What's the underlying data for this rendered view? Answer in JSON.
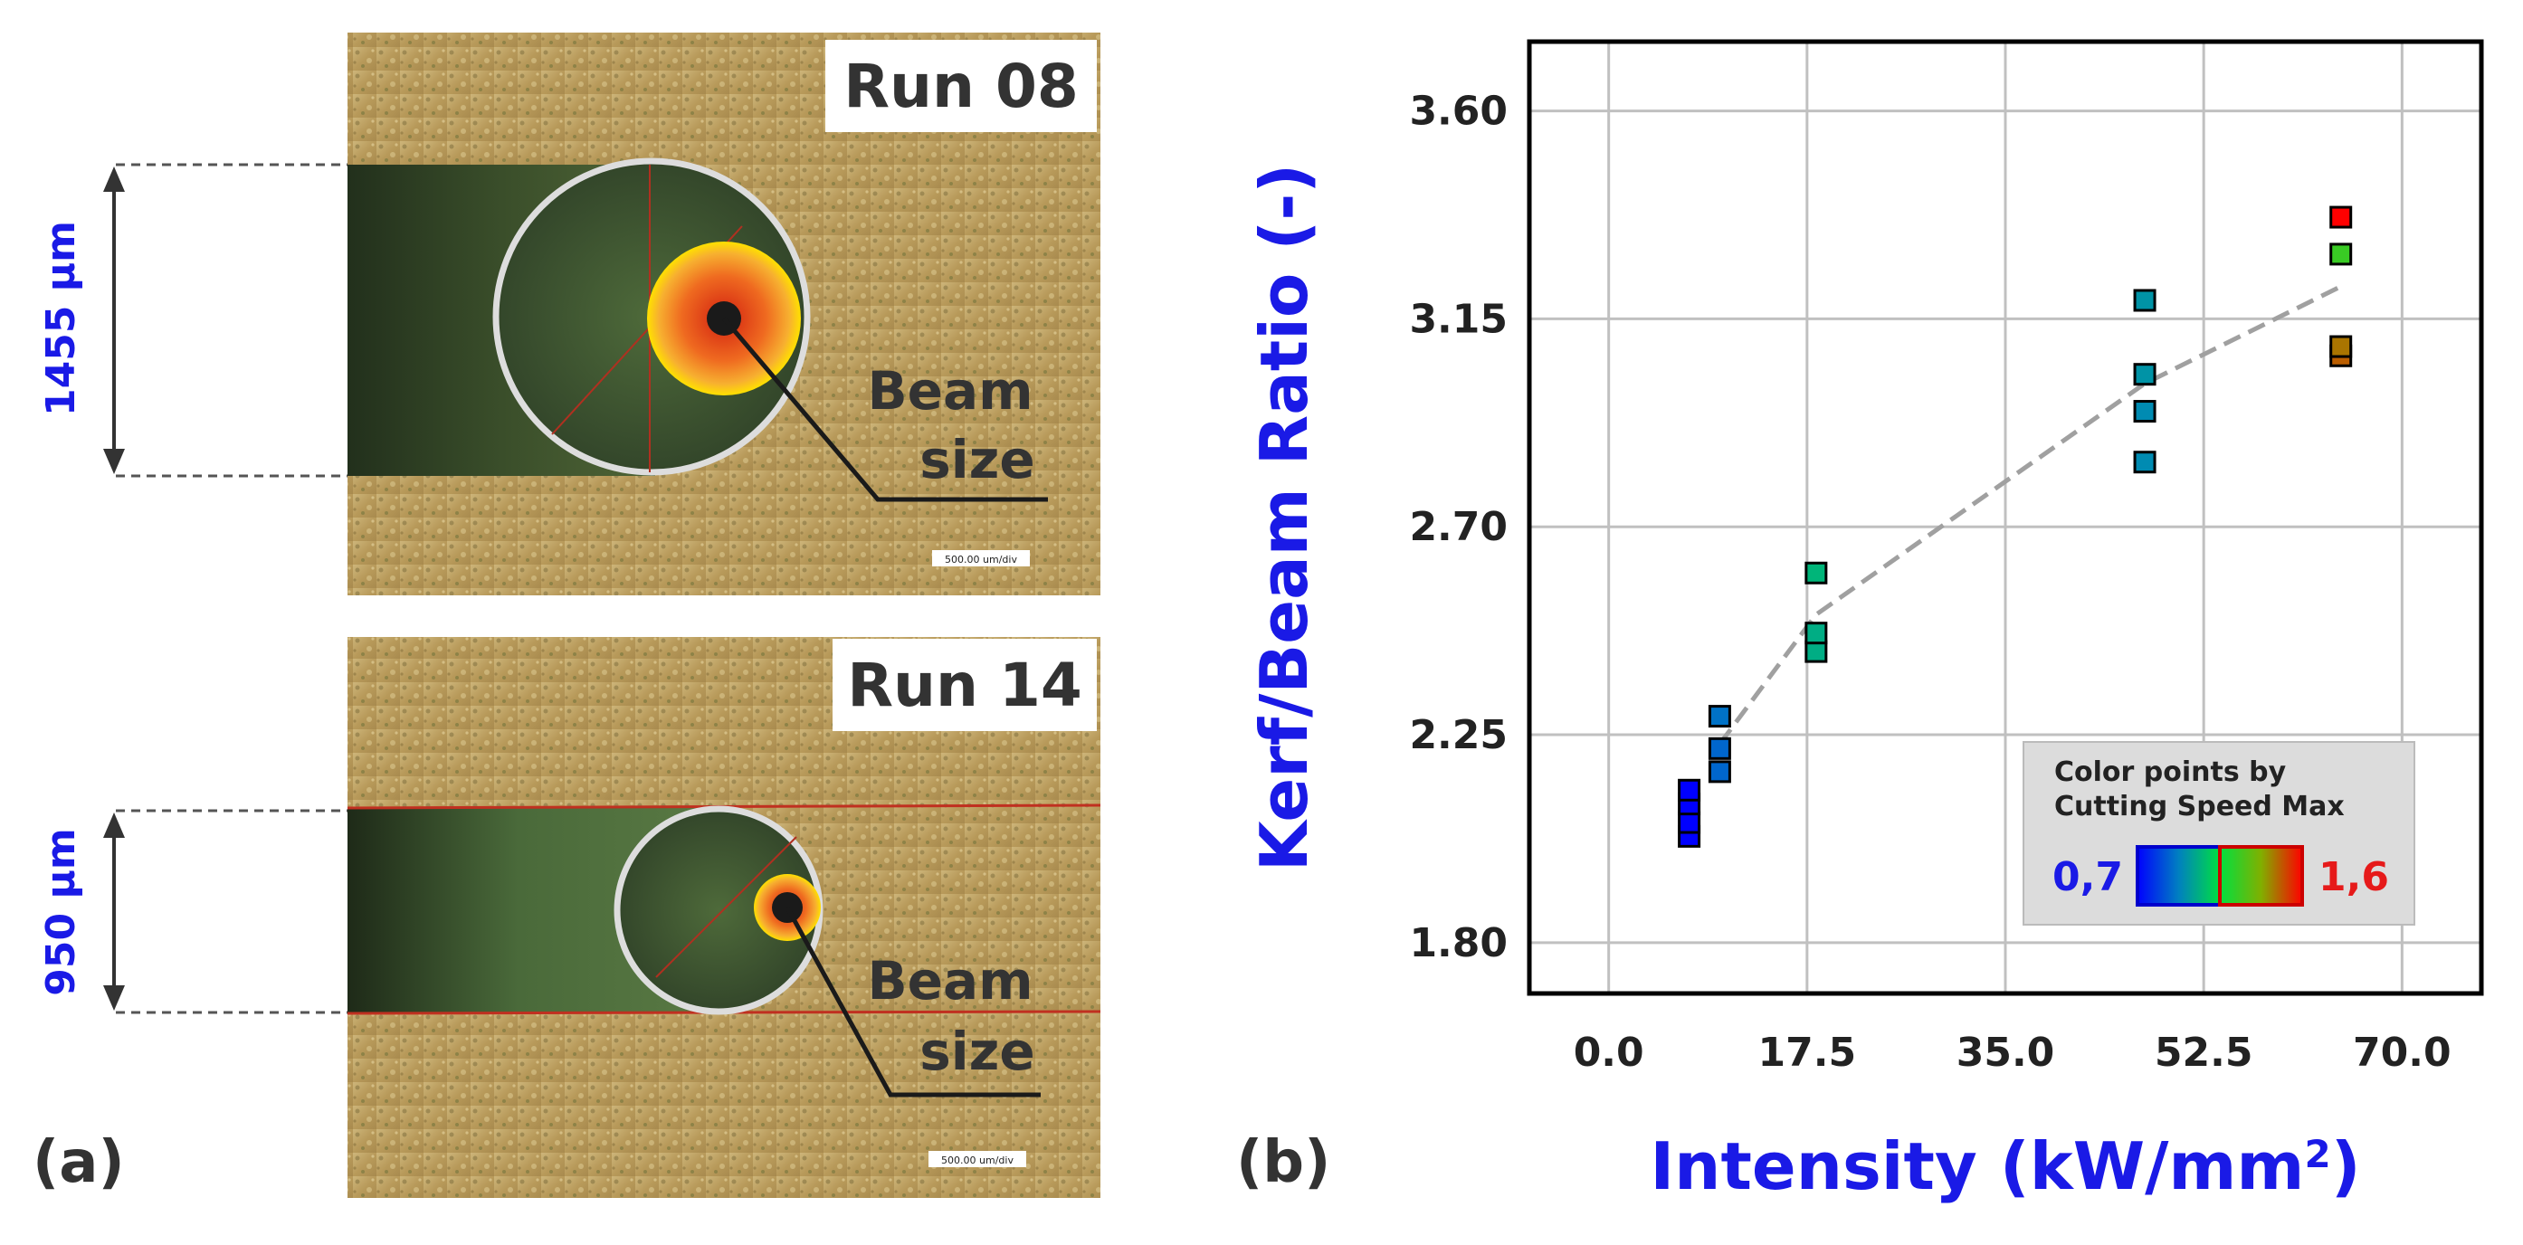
{
  "panel_a": {
    "label": "(a)",
    "micrographs": [
      {
        "run_label": "Run 08",
        "dimension_text": "1455 µm",
        "beam_label_line1": "Beam",
        "beam_label_line2": "size",
        "scale_bar_text": "500.00 um/div"
      },
      {
        "run_label": "Run 14",
        "dimension_text": "950 µm",
        "beam_label_line1": "Beam",
        "beam_label_line2": "size",
        "scale_bar_text": "500.00 um/div"
      }
    ]
  },
  "panel_b": {
    "label": "(b)"
  },
  "colors": {
    "dimension_text": "#1a1ae6",
    "axis_title": "#1a1ae6",
    "colorbar_min": "#1a1ae6",
    "colorbar_max": "#e61a1a",
    "trend_line": "#a0a0a0",
    "grid": "#c0c0c0"
  },
  "chart_data": {
    "type": "scatter",
    "xlabel": "Intensity (kW/mm",
    "xlabel_sup": "2",
    "xlabel_close": ")",
    "ylabel": "Kerf/Beam Ratio (-)",
    "xlim": [
      -7,
      77
    ],
    "ylim": [
      1.69,
      3.75
    ],
    "x_ticks": [
      0,
      17.5,
      35,
      52.5,
      70
    ],
    "x_tick_labels": [
      "0.0",
      "17.5",
      "35.0",
      "52.5",
      "70.0"
    ],
    "y_ticks": [
      1.8,
      2.25,
      2.7,
      3.15,
      3.6
    ],
    "y_tick_labels": [
      "1.80",
      "2.25",
      "2.70",
      "3.15",
      "3.60"
    ],
    "grid": true,
    "legend": {
      "title_line1": "Color points by",
      "title_line2": "Cutting Speed Max",
      "min_label": "0,7",
      "max_label": "1,6",
      "min_value": 0.7,
      "max_value": 1.6,
      "position": "bottom-right"
    },
    "points": [
      {
        "x": 7.1,
        "y": 2.03,
        "speed": 0.7
      },
      {
        "x": 7.1,
        "y": 2.06,
        "speed": 0.7
      },
      {
        "x": 7.1,
        "y": 2.1,
        "speed": 0.7
      },
      {
        "x": 7.1,
        "y": 2.13,
        "speed": 0.7
      },
      {
        "x": 9.8,
        "y": 2.17,
        "speed": 0.88
      },
      {
        "x": 9.8,
        "y": 2.22,
        "speed": 0.88
      },
      {
        "x": 9.8,
        "y": 2.29,
        "speed": 0.9
      },
      {
        "x": 18.3,
        "y": 2.43,
        "speed": 1.03
      },
      {
        "x": 18.3,
        "y": 2.47,
        "speed": 1.03
      },
      {
        "x": 18.3,
        "y": 2.6,
        "speed": 1.05
      },
      {
        "x": 47.3,
        "y": 2.84,
        "speed": 0.95
      },
      {
        "x": 47.3,
        "y": 2.95,
        "speed": 0.95
      },
      {
        "x": 47.3,
        "y": 3.03,
        "speed": 0.97
      },
      {
        "x": 47.3,
        "y": 3.19,
        "speed": 0.97
      },
      {
        "x": 64.6,
        "y": 3.07,
        "speed": 1.48
      },
      {
        "x": 64.6,
        "y": 3.09,
        "speed": 1.45
      },
      {
        "x": 64.6,
        "y": 3.29,
        "speed": 1.25
      },
      {
        "x": 64.6,
        "y": 3.37,
        "speed": 1.6
      }
    ],
    "trend": {
      "x": [
        9.8,
        18.3,
        47.3,
        64.6
      ],
      "y": [
        2.23,
        2.51,
        3.01,
        3.22
      ]
    }
  }
}
